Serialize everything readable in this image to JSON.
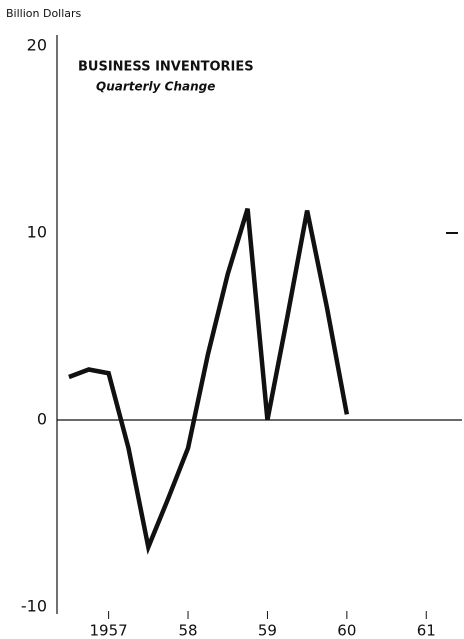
{
  "chart_data": {
    "type": "line",
    "title": "BUSINESS INVENTORIES",
    "subtitle": "Quarterly Change",
    "y_axis_label": "Billion Dollars",
    "x": [
      1957,
      1957.25,
      1957.5,
      1957.75,
      1958,
      1958.25,
      1958.5,
      1958.75,
      1959,
      1959.25,
      1959.5,
      1959.75,
      1960,
      1960.25,
      1960.5
    ],
    "series": [
      {
        "name": "Business Inventories",
        "color": "#111111",
        "values": [
          2.3,
          2.7,
          2.5,
          -1.5,
          -6.8,
          -4.2,
          -1.5,
          3.5,
          7.8,
          11.3,
          0,
          5.5,
          11.2,
          6,
          0.3
        ]
      }
    ],
    "xlim": [
      1956.85,
      1961.95
    ],
    "xticks": [
      {
        "value": 1957.5,
        "label": "1957"
      },
      {
        "value": 1958.5,
        "label": "58"
      },
      {
        "value": 1959.5,
        "label": "59"
      },
      {
        "value": 1960.5,
        "label": "60"
      },
      {
        "value": 1961.5,
        "label": "61"
      }
    ],
    "ylim": [
      -10,
      20
    ],
    "yticks": [
      -10,
      0,
      10,
      20
    ]
  }
}
